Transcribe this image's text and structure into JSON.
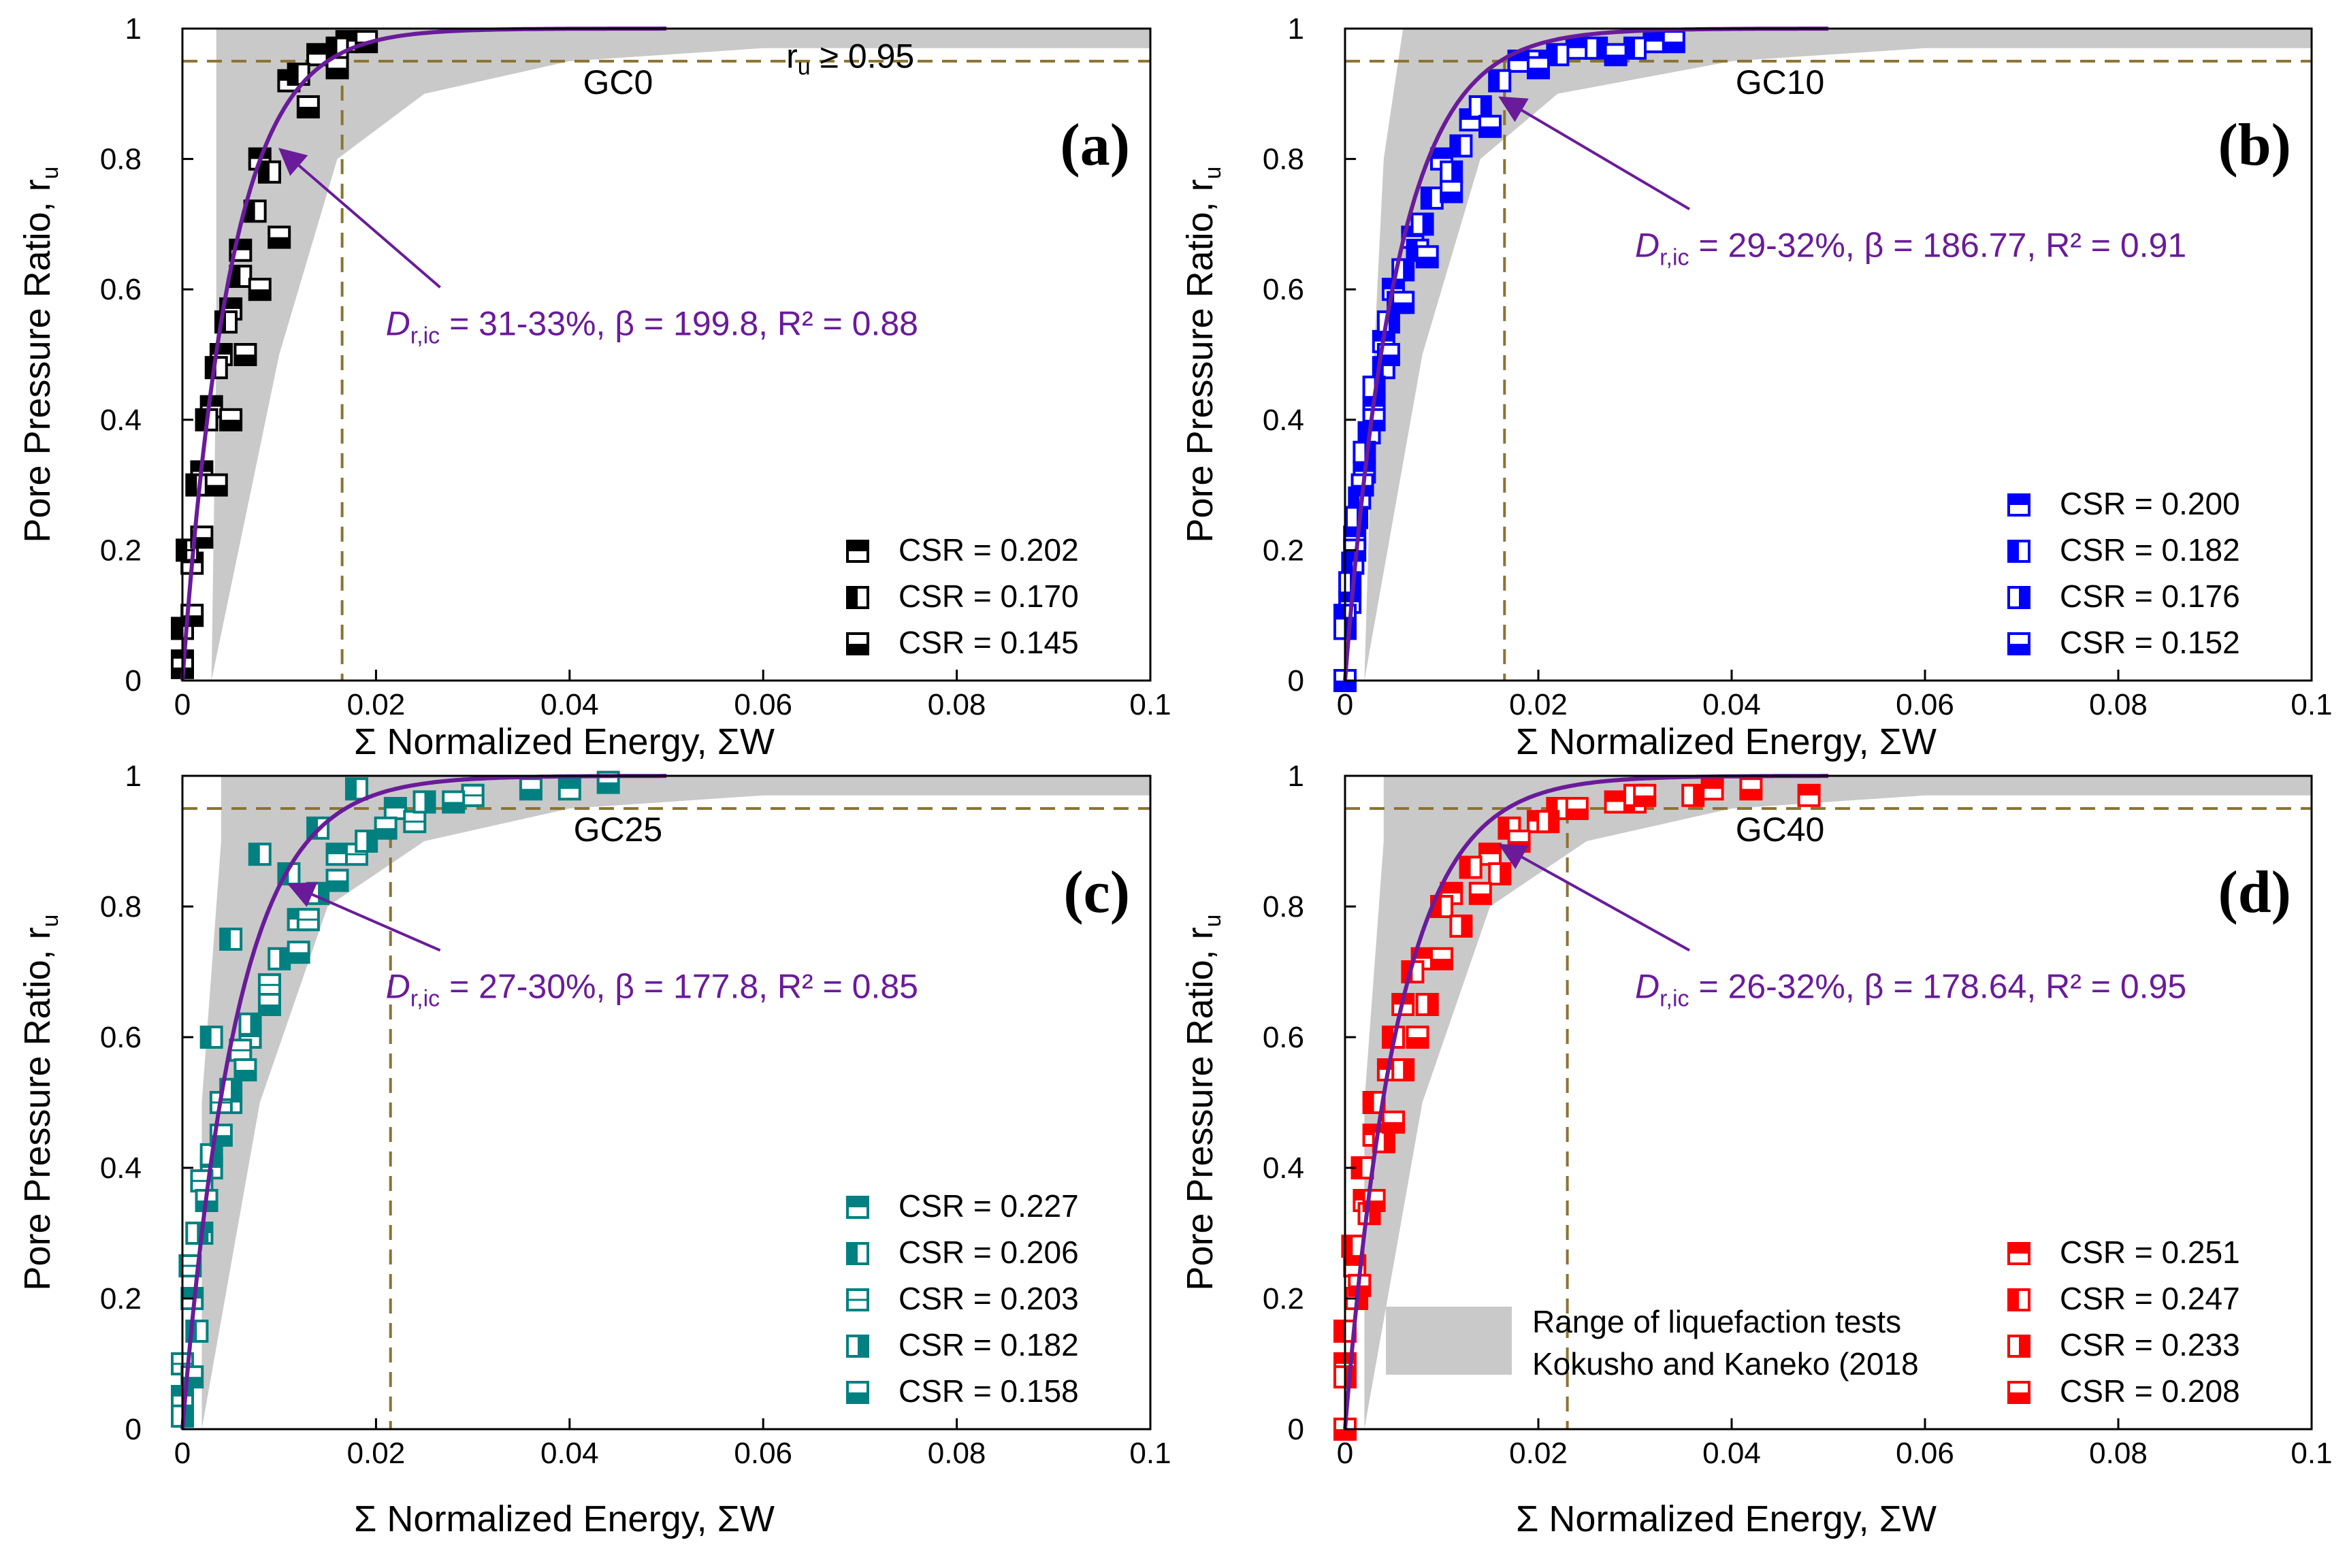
{
  "chart_data": [
    {
      "type": "scatter",
      "panel_label": "(a)",
      "group_label": "GC0",
      "threshold_label": "ru ≥ 0.95",
      "xlabel": "Σ Normalized Energy, ΣW",
      "ylabel": "Pore Pressure Ratio, ru",
      "xlim": [
        0,
        0.1
      ],
      "ylim": [
        0,
        1
      ],
      "xticks": [
        "0",
        "0.02",
        "0.04",
        "0.06",
        "0.08",
        "0.1"
      ],
      "yticks": [
        "0",
        "0.2",
        "0.4",
        "0.6",
        "0.8",
        "1"
      ],
      "grid": false,
      "legend_position": "bottom-right",
      "color": "#000000",
      "ru_threshold": 0.95,
      "vline_x": 0.0165,
      "fit": {
        "beta": 199.8,
        "annotation": {
          "prefix": "D",
          "sub": "r,ic",
          "text": " = 31-33%, β = 199.8, R² = 0.88"
        },
        "arrow_target": [
          0.0095,
          0.82
        ]
      },
      "band": {
        "upper": [
          [
            0.003,
            0
          ],
          [
            0.0035,
            0.5
          ],
          [
            0.0035,
            1
          ]
        ],
        "lower": [
          [
            0.003,
            0
          ],
          [
            0.01,
            0.5
          ],
          [
            0.016,
            0.8
          ],
          [
            0.025,
            0.9
          ],
          [
            0.04,
            0.95
          ],
          [
            0.06,
            0.97
          ],
          [
            0.1,
            0.97
          ]
        ]
      },
      "series": [
        {
          "name": "CSR = 0.202",
          "marker": "top",
          "x": [
            0,
            0.001,
            0.002,
            0.003,
            0.004,
            0.005,
            0.006,
            0.008,
            0.011,
            0.014,
            0.017
          ],
          "y": [
            0.03,
            0.18,
            0.32,
            0.42,
            0.5,
            0.57,
            0.66,
            0.8,
            0.92,
            0.96,
            0.98
          ]
        },
        {
          "name": "CSR = 0.170",
          "marker": "left",
          "x": [
            0,
            0.0005,
            0.0015,
            0.0025,
            0.0035,
            0.0045,
            0.006,
            0.0075,
            0.009,
            0.012,
            0.016
          ],
          "y": [
            0.08,
            0.2,
            0.3,
            0.4,
            0.48,
            0.55,
            0.62,
            0.72,
            0.78,
            0.93,
            0.97
          ]
        },
        {
          "name": "CSR = 0.145",
          "marker": "bottom",
          "x": [
            0,
            0.001,
            0.002,
            0.0035,
            0.005,
            0.0065,
            0.008,
            0.01,
            0.013,
            0.016,
            0.019
          ],
          "y": [
            0.02,
            0.1,
            0.22,
            0.3,
            0.4,
            0.5,
            0.6,
            0.68,
            0.88,
            0.94,
            0.98
          ]
        }
      ]
    },
    {
      "type": "scatter",
      "panel_label": "(b)",
      "group_label": "GC10",
      "xlabel": "Σ Normalized Energy, ΣW",
      "ylabel": "Pore Pressure Ratio, ru",
      "xlim": [
        0,
        0.1
      ],
      "ylim": [
        0,
        1
      ],
      "xticks": [
        "0",
        "0.02",
        "0.04",
        "0.06",
        "0.08",
        "0.1"
      ],
      "yticks": [
        "0",
        "0.2",
        "0.4",
        "0.6",
        "0.8",
        "1"
      ],
      "grid": false,
      "legend_position": "bottom-right",
      "color": "#0000ff",
      "ru_threshold": 0.95,
      "vline_x": 0.0165,
      "fit": {
        "beta": 186.77,
        "annotation": {
          "prefix": "D",
          "sub": "r,ic",
          "text": " = 29-32%, β = 186.77, R² = 0.91"
        },
        "arrow_target": [
          0.0155,
          0.9
        ]
      },
      "band": {
        "upper": [
          [
            0.002,
            0
          ],
          [
            0.003,
            0.5
          ],
          [
            0.004,
            0.8
          ],
          [
            0.006,
            1
          ]
        ],
        "lower": [
          [
            0.002,
            0
          ],
          [
            0.008,
            0.5
          ],
          [
            0.014,
            0.8
          ],
          [
            0.022,
            0.9
          ],
          [
            0.04,
            0.95
          ],
          [
            0.06,
            0.97
          ],
          [
            0.1,
            0.97
          ]
        ]
      },
      "series": [
        {
          "name": "CSR = 0.200",
          "marker": "top",
          "x": [
            0,
            0.0005,
            0.001,
            0.002,
            0.003,
            0.004,
            0.005,
            0.007,
            0.01,
            0.013,
            0.018,
            0.024,
            0.032
          ],
          "y": [
            0,
            0.12,
            0.22,
            0.32,
            0.42,
            0.52,
            0.6,
            0.68,
            0.8,
            0.86,
            0.95,
            0.97,
            0.98
          ]
        },
        {
          "name": "CSR = 0.182",
          "marker": "left",
          "x": [
            0,
            0.0008,
            0.0015,
            0.0025,
            0.004,
            0.0055,
            0.0075,
            0.009,
            0.012,
            0.016,
            0.022,
            0.03
          ],
          "y": [
            0.1,
            0.18,
            0.28,
            0.38,
            0.48,
            0.58,
            0.66,
            0.74,
            0.82,
            0.92,
            0.96,
            0.97
          ]
        },
        {
          "name": "CSR = 0.176",
          "marker": "right",
          "x": [
            0,
            0.0005,
            0.0012,
            0.002,
            0.003,
            0.0045,
            0.006,
            0.008,
            0.011,
            0.014,
            0.02,
            0.026
          ],
          "y": [
            0.08,
            0.15,
            0.25,
            0.35,
            0.45,
            0.55,
            0.63,
            0.7,
            0.78,
            0.88,
            0.95,
            0.97
          ]
        },
        {
          "name": "CSR = 0.152",
          "marker": "bottom",
          "x": [
            0,
            0.001,
            0.0018,
            0.003,
            0.0045,
            0.006,
            0.0085,
            0.011,
            0.015,
            0.02,
            0.028,
            0.034
          ],
          "y": [
            0,
            0.2,
            0.3,
            0.4,
            0.5,
            0.58,
            0.65,
            0.75,
            0.85,
            0.94,
            0.96,
            0.98
          ]
        }
      ]
    },
    {
      "type": "scatter",
      "panel_label": "(c)",
      "group_label": "GC25",
      "xlabel": "Σ Normalized Energy, ΣW",
      "ylabel": "Pore Pressure Ratio, ru",
      "xlim": [
        0,
        0.1
      ],
      "ylim": [
        0,
        1
      ],
      "xticks": [
        "0",
        "0.02",
        "0.04",
        "0.06",
        "0.08",
        "0.1"
      ],
      "yticks": [
        "0",
        "0.2",
        "0.4",
        "0.6",
        "0.8",
        "1"
      ],
      "grid": false,
      "legend_position": "bottom-right",
      "color": "#008080",
      "ru_threshold": 0.95,
      "vline_x": 0.0215,
      "fit": {
        "beta": 177.8,
        "annotation": {
          "prefix": "D",
          "sub": "r,ic",
          "text": " = 27-30%, β = 177.8, R² = 0.85"
        },
        "arrow_target": [
          0.0105,
          0.84
        ]
      },
      "band": {
        "upper": [
          [
            0.002,
            0
          ],
          [
            0.002,
            0.5
          ],
          [
            0.004,
            0.9
          ],
          [
            0.004,
            1
          ]
        ],
        "lower": [
          [
            0.002,
            0
          ],
          [
            0.008,
            0.5
          ],
          [
            0.015,
            0.8
          ],
          [
            0.025,
            0.9
          ],
          [
            0.04,
            0.95
          ],
          [
            0.06,
            0.97
          ],
          [
            0.1,
            0.97
          ]
        ]
      },
      "series": [
        {
          "name": "CSR = 0.227",
          "marker": "top",
          "x": [
            0,
            0.001,
            0.002,
            0.003,
            0.005,
            0.007,
            0.009,
            0.012,
            0.016,
            0.022,
            0.03,
            0.04
          ],
          "y": [
            0.05,
            0.2,
            0.3,
            0.4,
            0.5,
            0.6,
            0.68,
            0.78,
            0.88,
            0.95,
            0.97,
            0.98
          ]
        },
        {
          "name": "CSR = 0.206",
          "marker": "left",
          "x": [
            0.0015,
            0.003,
            0.005,
            0.008,
            0.011,
            0.014,
            0.018
          ],
          "y": [
            0.15,
            0.6,
            0.75,
            0.88,
            0.85,
            0.92,
            0.98
          ]
        },
        {
          "name": "CSR = 0.203",
          "marker": "open",
          "x": [
            0,
            0.0008,
            0.002,
            0.004,
            0.006,
            0.009,
            0.013,
            0.018,
            0.024,
            0.03
          ],
          "y": [
            0.1,
            0.25,
            0.38,
            0.5,
            0.58,
            0.68,
            0.78,
            0.88,
            0.93,
            0.97
          ]
        },
        {
          "name": "CSR = 0.182",
          "marker": "right",
          "x": [
            0,
            0.0015,
            0.003,
            0.005,
            0.007,
            0.01,
            0.014,
            0.019,
            0.025
          ],
          "y": [
            0.02,
            0.3,
            0.42,
            0.52,
            0.62,
            0.72,
            0.82,
            0.9,
            0.96
          ]
        },
        {
          "name": "CSR = 0.158",
          "marker": "bottom",
          "x": [
            0.001,
            0.0025,
            0.004,
            0.0065,
            0.009,
            0.012,
            0.016,
            0.021,
            0.028,
            0.036,
            0.044
          ],
          "y": [
            0.08,
            0.35,
            0.45,
            0.55,
            0.65,
            0.73,
            0.84,
            0.92,
            0.96,
            0.98,
            0.99
          ]
        }
      ]
    },
    {
      "type": "scatter",
      "panel_label": "(d)",
      "group_label": "GC40",
      "xlabel": "Σ Normalized Energy, ΣW",
      "ylabel": "Pore Pressure Ratio, ru",
      "xlim": [
        0,
        0.1
      ],
      "ylim": [
        0,
        1
      ],
      "xticks": [
        "0",
        "0.02",
        "0.04",
        "0.06",
        "0.08",
        "0.1"
      ],
      "yticks": [
        "0",
        "0.2",
        "0.4",
        "0.6",
        "0.8",
        "1"
      ],
      "grid": false,
      "legend_position": "bottom-right",
      "color": "#ff0000",
      "ru_threshold": 0.95,
      "vline_x": 0.023,
      "fit": {
        "beta": 178.64,
        "annotation": {
          "prefix": "D",
          "sub": "r,ic",
          "text": " = 26-32%, β = 178.64, R² = 0.95"
        },
        "arrow_target": [
          0.0155,
          0.9
        ]
      },
      "band": {
        "upper": [
          [
            0.002,
            0
          ],
          [
            0.002,
            0.5
          ],
          [
            0.004,
            0.9
          ],
          [
            0.004,
            1
          ]
        ],
        "lower": [
          [
            0.002,
            0
          ],
          [
            0.008,
            0.5
          ],
          [
            0.015,
            0.8
          ],
          [
            0.025,
            0.9
          ],
          [
            0.04,
            0.95
          ],
          [
            0.06,
            0.97
          ],
          [
            0.1,
            0.97
          ]
        ]
      },
      "band_legend": {
        "line1": "Range of liquefaction tests",
        "line2": "Kokusho and Kaneko (2018"
      },
      "series": [
        {
          "name": "CSR = 0.251",
          "marker": "top",
          "x": [
            0,
            0.001,
            0.002,
            0.003,
            0.0045,
            0.006,
            0.008,
            0.011,
            0.015,
            0.02,
            0.028,
            0.038,
            0.048
          ],
          "y": [
            0.1,
            0.25,
            0.35,
            0.45,
            0.55,
            0.65,
            0.72,
            0.82,
            0.88,
            0.93,
            0.96,
            0.98,
            0.97
          ]
        },
        {
          "name": "CSR = 0.247",
          "marker": "left",
          "x": [
            0,
            0.0008,
            0.0018,
            0.003,
            0.005,
            0.007,
            0.01,
            0.013,
            0.017,
            0.022,
            0.03
          ],
          "y": [
            0.15,
            0.28,
            0.4,
            0.5,
            0.6,
            0.7,
            0.8,
            0.86,
            0.92,
            0.95,
            0.96
          ]
        },
        {
          "name": "CSR = 0.233",
          "marker": "right",
          "x": [
            0,
            0.0012,
            0.0025,
            0.004,
            0.006,
            0.0085,
            0.012,
            0.016,
            0.021,
            0.03,
            0.036
          ],
          "y": [
            0.08,
            0.2,
            0.33,
            0.44,
            0.55,
            0.65,
            0.77,
            0.85,
            0.93,
            0.97,
            0.97
          ]
        },
        {
          "name": "CSR = 0.208",
          "marker": "bottom",
          "x": [
            0,
            0.0015,
            0.003,
            0.005,
            0.0075,
            0.01,
            0.014,
            0.018,
            0.024,
            0.031,
            0.042
          ],
          "y": [
            0,
            0.22,
            0.35,
            0.47,
            0.6,
            0.72,
            0.82,
            0.9,
            0.95,
            0.97,
            0.98
          ]
        }
      ]
    }
  ]
}
